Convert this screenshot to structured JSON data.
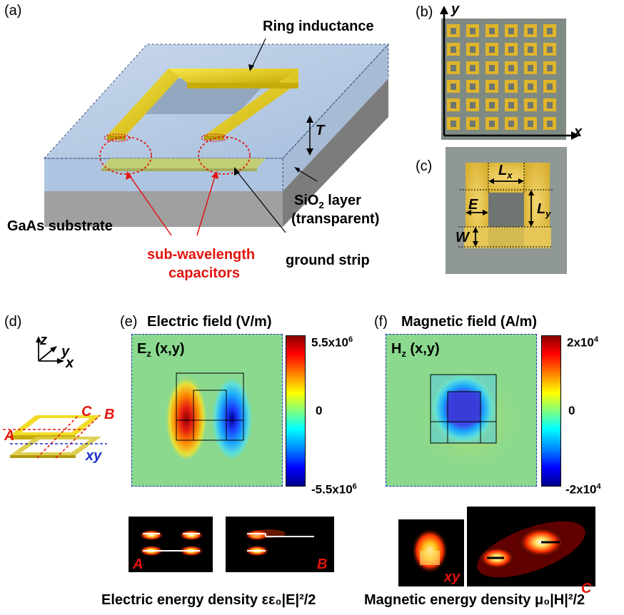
{
  "panels": {
    "a": {
      "label": "(a)",
      "ring_inductance": "Ring inductance",
      "T": "T",
      "sio2_line1": "SiO",
      "sio2_sub": "2",
      "sio2_line1b": " layer",
      "sio2_line2": "(transparent)",
      "gaas": "GaAs  substrate",
      "capacitors_line1": "sub-wavelength",
      "capacitors_line2": "capacitors",
      "ground_strip": "ground strip"
    },
    "b": {
      "label": "(b)",
      "axis_x": "x",
      "axis_y": "y"
    },
    "c": {
      "label": "(c)",
      "Lx": "L",
      "Lx_sub": "x",
      "Ly": "L",
      "Ly_sub": "y",
      "E": "E",
      "W": "W"
    },
    "d": {
      "label": "(d)",
      "axis_z": "z",
      "axis_y": "y",
      "axis_x": "x",
      "cut_A": "A",
      "cut_B": "B",
      "cut_C": "C",
      "cut_xy": "xy"
    },
    "e": {
      "label": "(e)",
      "title": "Electric field (V/m)",
      "field": "E",
      "field_sub": "z",
      "field_args": " (x,y)",
      "cb_max": "5.5x10",
      "cb_max_exp": "6",
      "cb_zero": "0",
      "cb_min": "-5.5x10",
      "cb_min_exp": "6"
    },
    "f": {
      "label": "(f)",
      "title": "Magnetic field (A/m)",
      "field": "H",
      "field_sub": "z",
      "field_args": " (x,y)",
      "cb_max": "2x10",
      "cb_max_exp": "4",
      "cb_zero": "0",
      "cb_min": "-2x10",
      "cb_min_exp": "4"
    }
  },
  "energy_maps": {
    "electric": {
      "A": "A",
      "B": "B",
      "caption": "Electric energy density εε₀|E|²/2"
    },
    "magnetic": {
      "xy": "xy",
      "C": "C",
      "caption": "Magnetic energy density μ₀|H|²/2"
    }
  },
  "colors": {
    "red_label": "#e3140e",
    "gold": "#e8d21a",
    "blue_layer": "#a9c2e0",
    "gaas": "#8d8d8d"
  }
}
